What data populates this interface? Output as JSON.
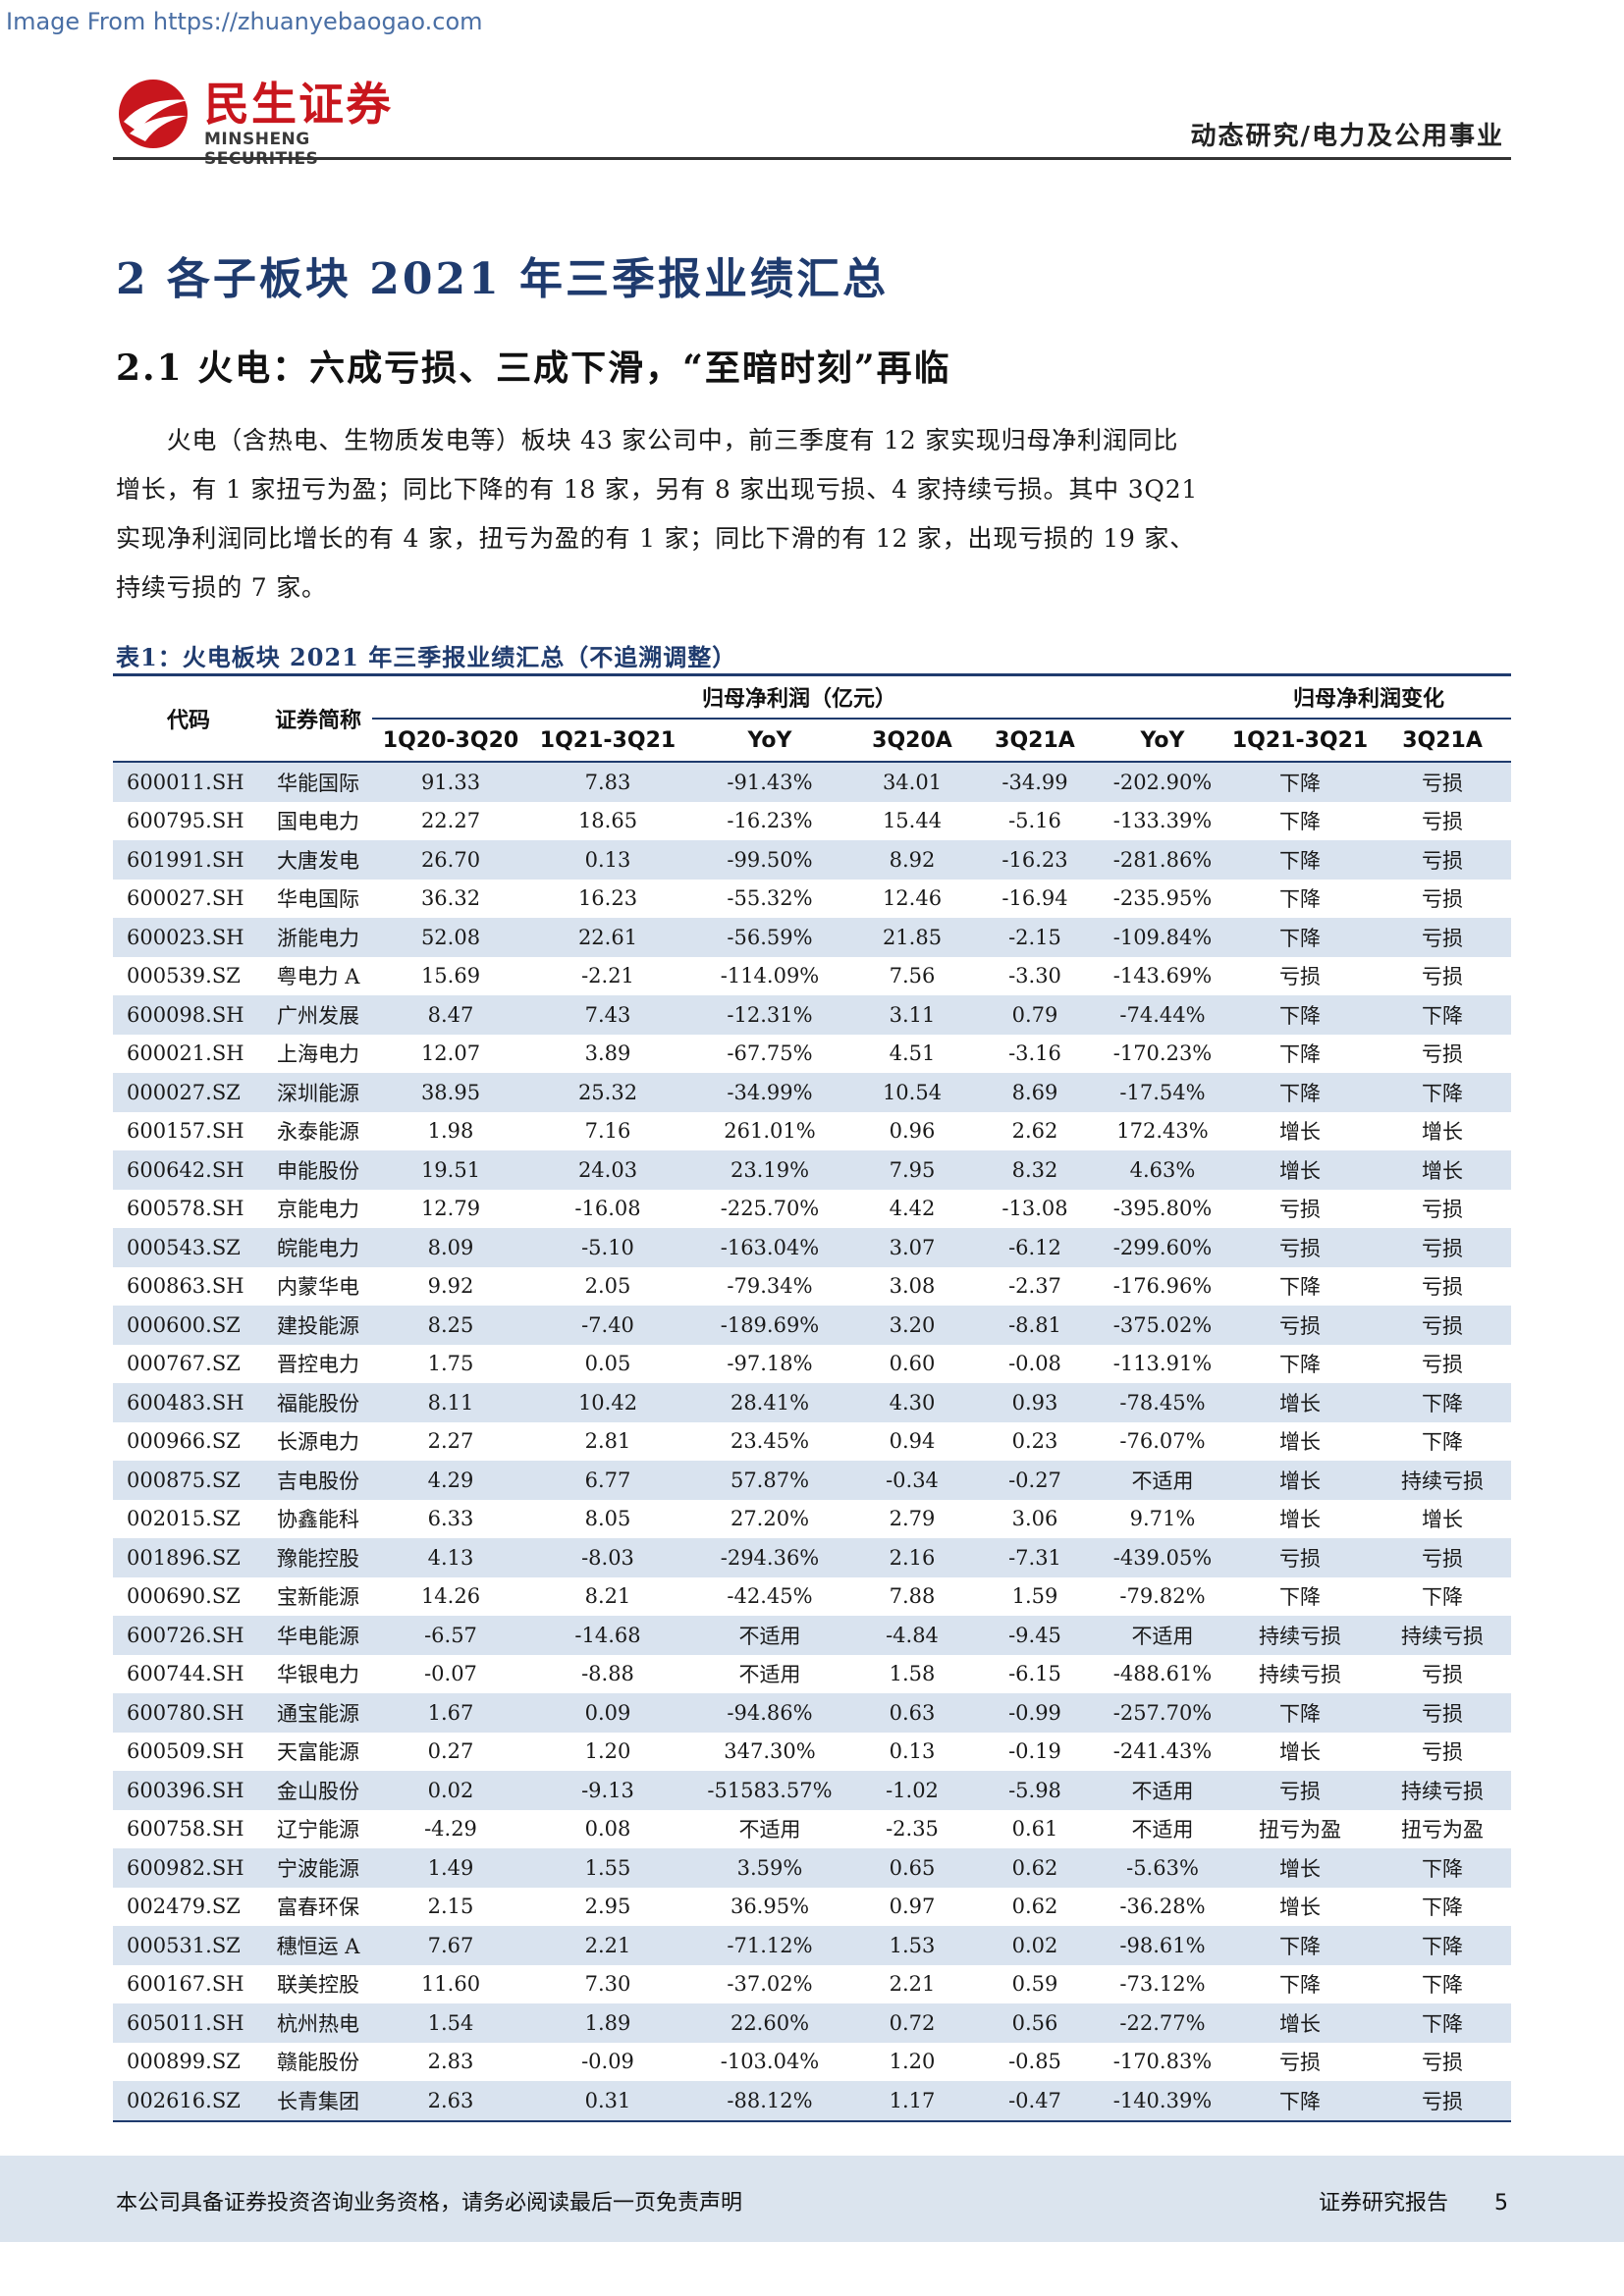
{
  "watermark": "Image From https://zhuanyebaogao.com",
  "logo": {
    "cn": "民生证券",
    "en": "MINSHENG SECURITIES"
  },
  "header": {
    "category": "动态研究/电力及公用事业"
  },
  "section": {
    "title": "2  各子板块 2021 年三季报业绩汇总"
  },
  "subsection": {
    "title": "2.1  火电：六成亏损、三成下滑，“至暗时刻”再临"
  },
  "paragraph": [
    "　　火电（含热电、生物质发电等）板块 43 家公司中，前三季度有 12 家实现归母净利润同比",
    "增长，有 1 家扭亏为盈；同比下降的有 18 家，另有 8 家出现亏损、4 家持续亏损。其中 3Q21",
    "实现净利润同比增长的有 4 家，扭亏为盈的有 1 家；同比下滑的有 12 家，出现亏损的 19 家、",
    "持续亏损的 7 家。"
  ],
  "table": {
    "caption": "表1：火电板块 2021 年三季报业绩汇总（不追溯调整）",
    "col_code": "代码",
    "col_name": "证券简称",
    "group_profit": "归母净利润（亿元）",
    "group_change": "归母净利润变化",
    "subheaders": [
      "1Q20-3Q20",
      "1Q21-3Q21",
      "YoY",
      "3Q20A",
      "3Q21A",
      "YoY",
      "1Q21-3Q21",
      "3Q21A"
    ],
    "rows": [
      [
        "600011.SH",
        "华能国际",
        "91.33",
        "7.83",
        "-91.43%",
        "34.01",
        "-34.99",
        "-202.90%",
        "下降",
        "亏损"
      ],
      [
        "600795.SH",
        "国电电力",
        "22.27",
        "18.65",
        "-16.23%",
        "15.44",
        "-5.16",
        "-133.39%",
        "下降",
        "亏损"
      ],
      [
        "601991.SH",
        "大唐发电",
        "26.70",
        "0.13",
        "-99.50%",
        "8.92",
        "-16.23",
        "-281.86%",
        "下降",
        "亏损"
      ],
      [
        "600027.SH",
        "华电国际",
        "36.32",
        "16.23",
        "-55.32%",
        "12.46",
        "-16.94",
        "-235.95%",
        "下降",
        "亏损"
      ],
      [
        "600023.SH",
        "浙能电力",
        "52.08",
        "22.61",
        "-56.59%",
        "21.85",
        "-2.15",
        "-109.84%",
        "下降",
        "亏损"
      ],
      [
        "000539.SZ",
        "粤电力 A",
        "15.69",
        "-2.21",
        "-114.09%",
        "7.56",
        "-3.30",
        "-143.69%",
        "亏损",
        "亏损"
      ],
      [
        "600098.SH",
        "广州发展",
        "8.47",
        "7.43",
        "-12.31%",
        "3.11",
        "0.79",
        "-74.44%",
        "下降",
        "下降"
      ],
      [
        "600021.SH",
        "上海电力",
        "12.07",
        "3.89",
        "-67.75%",
        "4.51",
        "-3.16",
        "-170.23%",
        "下降",
        "亏损"
      ],
      [
        "000027.SZ",
        "深圳能源",
        "38.95",
        "25.32",
        "-34.99%",
        "10.54",
        "8.69",
        "-17.54%",
        "下降",
        "下降"
      ],
      [
        "600157.SH",
        "永泰能源",
        "1.98",
        "7.16",
        "261.01%",
        "0.96",
        "2.62",
        "172.43%",
        "增长",
        "增长"
      ],
      [
        "600642.SH",
        "申能股份",
        "19.51",
        "24.03",
        "23.19%",
        "7.95",
        "8.32",
        "4.63%",
        "增长",
        "增长"
      ],
      [
        "600578.SH",
        "京能电力",
        "12.79",
        "-16.08",
        "-225.70%",
        "4.42",
        "-13.08",
        "-395.80%",
        "亏损",
        "亏损"
      ],
      [
        "000543.SZ",
        "皖能电力",
        "8.09",
        "-5.10",
        "-163.04%",
        "3.07",
        "-6.12",
        "-299.60%",
        "亏损",
        "亏损"
      ],
      [
        "600863.SH",
        "内蒙华电",
        "9.92",
        "2.05",
        "-79.34%",
        "3.08",
        "-2.37",
        "-176.96%",
        "下降",
        "亏损"
      ],
      [
        "000600.SZ",
        "建投能源",
        "8.25",
        "-7.40",
        "-189.69%",
        "3.20",
        "-8.81",
        "-375.02%",
        "亏损",
        "亏损"
      ],
      [
        "000767.SZ",
        "晋控电力",
        "1.75",
        "0.05",
        "-97.18%",
        "0.60",
        "-0.08",
        "-113.91%",
        "下降",
        "亏损"
      ],
      [
        "600483.SH",
        "福能股份",
        "8.11",
        "10.42",
        "28.41%",
        "4.30",
        "0.93",
        "-78.45%",
        "增长",
        "下降"
      ],
      [
        "000966.SZ",
        "长源电力",
        "2.27",
        "2.81",
        "23.45%",
        "0.94",
        "0.23",
        "-76.07%",
        "增长",
        "下降"
      ],
      [
        "000875.SZ",
        "吉电股份",
        "4.29",
        "6.77",
        "57.87%",
        "-0.34",
        "-0.27",
        "不适用",
        "增长",
        "持续亏损"
      ],
      [
        "002015.SZ",
        "协鑫能科",
        "6.33",
        "8.05",
        "27.20%",
        "2.79",
        "3.06",
        "9.71%",
        "增长",
        "增长"
      ],
      [
        "001896.SZ",
        "豫能控股",
        "4.13",
        "-8.03",
        "-294.36%",
        "2.16",
        "-7.31",
        "-439.05%",
        "亏损",
        "亏损"
      ],
      [
        "000690.SZ",
        "宝新能源",
        "14.26",
        "8.21",
        "-42.45%",
        "7.88",
        "1.59",
        "-79.82%",
        "下降",
        "下降"
      ],
      [
        "600726.SH",
        "华电能源",
        "-6.57",
        "-14.68",
        "不适用",
        "-4.84",
        "-9.45",
        "不适用",
        "持续亏损",
        "持续亏损"
      ],
      [
        "600744.SH",
        "华银电力",
        "-0.07",
        "-8.88",
        "不适用",
        "1.58",
        "-6.15",
        "-488.61%",
        "持续亏损",
        "亏损"
      ],
      [
        "600780.SH",
        "通宝能源",
        "1.67",
        "0.09",
        "-94.86%",
        "0.63",
        "-0.99",
        "-257.70%",
        "下降",
        "亏损"
      ],
      [
        "600509.SH",
        "天富能源",
        "0.27",
        "1.20",
        "347.30%",
        "0.13",
        "-0.19",
        "-241.43%",
        "增长",
        "亏损"
      ],
      [
        "600396.SH",
        "金山股份",
        "0.02",
        "-9.13",
        "-51583.57%",
        "-1.02",
        "-5.98",
        "不适用",
        "亏损",
        "持续亏损"
      ],
      [
        "600758.SH",
        "辽宁能源",
        "-4.29",
        "0.08",
        "不适用",
        "-2.35",
        "0.61",
        "不适用",
        "扭亏为盈",
        "扭亏为盈"
      ],
      [
        "600982.SH",
        "宁波能源",
        "1.49",
        "1.55",
        "3.59%",
        "0.65",
        "0.62",
        "-5.63%",
        "增长",
        "下降"
      ],
      [
        "002479.SZ",
        "富春环保",
        "2.15",
        "2.95",
        "36.95%",
        "0.97",
        "0.62",
        "-36.28%",
        "增长",
        "下降"
      ],
      [
        "000531.SZ",
        "穗恒运 A",
        "7.67",
        "2.21",
        "-71.12%",
        "1.53",
        "0.02",
        "-98.61%",
        "下降",
        "下降"
      ],
      [
        "600167.SH",
        "联美控股",
        "11.60",
        "7.30",
        "-37.02%",
        "2.21",
        "0.59",
        "-73.12%",
        "下降",
        "下降"
      ],
      [
        "605011.SH",
        "杭州热电",
        "1.54",
        "1.89",
        "22.60%",
        "0.72",
        "0.56",
        "-22.77%",
        "增长",
        "下降"
      ],
      [
        "000899.SZ",
        "赣能股份",
        "2.83",
        "-0.09",
        "-103.04%",
        "1.20",
        "-0.85",
        "-170.83%",
        "亏损",
        "亏损"
      ],
      [
        "002616.SZ",
        "长青集团",
        "2.63",
        "0.31",
        "-88.12%",
        "1.17",
        "-0.47",
        "-140.39%",
        "下降",
        "亏损"
      ]
    ]
  },
  "footer": {
    "disclaimer": "本公司具备证券投资咨询业务资格，请务必阅读最后一页免责声明",
    "report_type": "证券研究报告",
    "page_number": "5"
  },
  "colors": {
    "brand_red": "#c8161d",
    "navy": "#1f3b6e",
    "stripe": "#d9e3ef",
    "footer_bg": "#dbe4ee"
  }
}
